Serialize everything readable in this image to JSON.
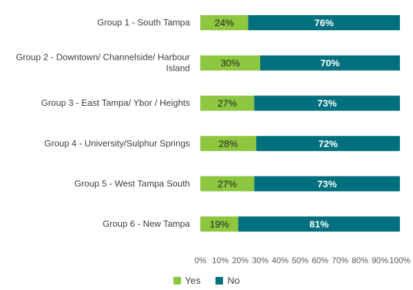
{
  "chart_data": {
    "type": "bar",
    "orientation": "horizontal",
    "stacked": true,
    "percent_stacked": true,
    "categories": [
      "Group 1 - South Tampa",
      "Group 2 - Downtown/ Channelside/ Harbour Island",
      "Group 3 - East Tampa/ Ybor / Heights",
      "Group 4 - University/Sulphur Springs",
      "Group 5 - West Tampa South",
      "Group 6 - New Tampa"
    ],
    "category_lines": [
      [
        "Group 1 - South Tampa"
      ],
      [
        "Group 2 - Downtown/ Channelside/ Harbour",
        "Island"
      ],
      [
        "Group 3 - East Tampa/ Ybor / Heights"
      ],
      [
        "Group 4 - University/Sulphur Springs"
      ],
      [
        "Group 5 - West Tampa South"
      ],
      [
        "Group 6 - New Tampa"
      ]
    ],
    "series": [
      {
        "name": "Yes",
        "values": [
          24,
          30,
          27,
          28,
          27,
          19
        ],
        "labels": [
          "24%",
          "30%",
          "27%",
          "28%",
          "27%",
          "19%"
        ],
        "color": "#8dc63f"
      },
      {
        "name": "No",
        "values": [
          76,
          70,
          73,
          72,
          73,
          81
        ],
        "labels": [
          "76%",
          "70%",
          "73%",
          "72%",
          "73%",
          "81%"
        ],
        "color": "#00707f"
      }
    ],
    "xlim": [
      0,
      100
    ],
    "xticks": [
      "0%",
      "10%",
      "20%",
      "30%",
      "40%",
      "50%",
      "60%",
      "70%",
      "80%",
      "90%",
      "100%"
    ],
    "grid": false,
    "legend_position": "bottom"
  }
}
